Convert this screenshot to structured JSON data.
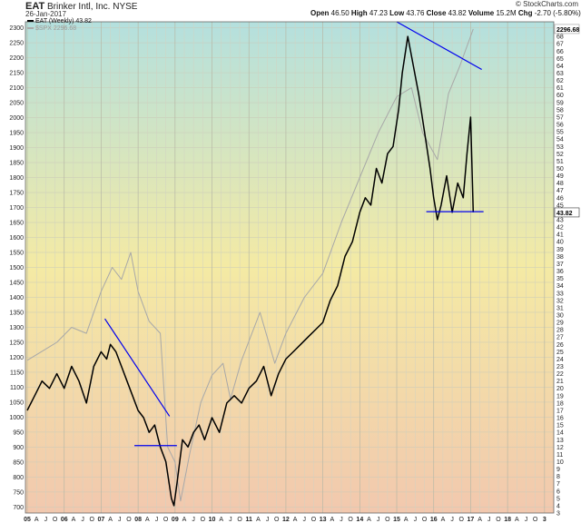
{
  "header": {
    "symbol": "EAT",
    "company": "Brinker Intl, Inc.",
    "exchange": "NYSE",
    "date": "26-Jan-2017",
    "brand": "© StockCharts.com",
    "quote": [
      {
        "k": "Open",
        "v": "46.50"
      },
      {
        "k": "High",
        "v": "47.23"
      },
      {
        "k": "Low",
        "v": "43.76"
      },
      {
        "k": "Close",
        "v": "43.82"
      },
      {
        "k": "Volume",
        "v": "15.2M"
      },
      {
        "k": "Chg",
        "v": "-2.70 (-5.80%)"
      }
    ]
  },
  "legend": {
    "eat": "EAT (Weekly) 43.82",
    "spx": "$SPX 2296.68"
  },
  "colors": {
    "eat_line": "#000000",
    "spx_line": "#a8a8a8",
    "trendline": "#0000ee",
    "bg_top": "#b4e0de",
    "bg_mid": "#f4eaa4",
    "bg_bottom": "#f2c8ae"
  },
  "chart_data": {
    "type": "line",
    "x_tick_labels": [
      "05",
      "A",
      "J",
      "O",
      "06",
      "A",
      "J",
      "O",
      "07",
      "A",
      "J",
      "O",
      "08",
      "A",
      "J",
      "O",
      "09",
      "A",
      "J",
      "O",
      "10",
      "A",
      "J",
      "O",
      "11",
      "A",
      "J",
      "O",
      "12",
      "A",
      "J",
      "O",
      "13",
      "A",
      "J",
      "O",
      "14",
      "A",
      "J",
      "O",
      "15",
      "A",
      "J",
      "O",
      "16",
      "A",
      "J",
      "O",
      "17",
      "A",
      "J",
      "O",
      "18",
      "A",
      "J",
      "O",
      "3"
    ],
    "x_range": [
      2004.95,
      2019.25
    ],
    "left_axis": {
      "ylim": [
        680,
        2320
      ],
      "ticks": [
        700,
        750,
        800,
        850,
        900,
        950,
        1000,
        1050,
        1100,
        1150,
        1200,
        1250,
        1300,
        1350,
        1400,
        1450,
        1500,
        1550,
        1600,
        1650,
        1700,
        1750,
        1800,
        1850,
        1900,
        1950,
        2000,
        2050,
        2100,
        2150,
        2200,
        2250,
        2300
      ]
    },
    "right_axis": {
      "ylim": [
        3,
        70
      ],
      "ticks": [
        3,
        4,
        5,
        6,
        7,
        8,
        9,
        10,
        11,
        12,
        13,
        14,
        15,
        16,
        17,
        18,
        19,
        20,
        21,
        22,
        23,
        24,
        25,
        26,
        27,
        28,
        29,
        30,
        31,
        32,
        33,
        34,
        35,
        36,
        37,
        38,
        39,
        40,
        41,
        42,
        43,
        44,
        45,
        46,
        47,
        48,
        49,
        50,
        51,
        52,
        53,
        54,
        55,
        56,
        57,
        58,
        59,
        60,
        61,
        62,
        63,
        64,
        65,
        66,
        67,
        68,
        69
      ]
    },
    "last_labels": {
      "spx": "2296.68",
      "eat": "43.82"
    },
    "series": [
      {
        "name": "EAT (Weekly) 43.82",
        "axis": "right",
        "x": [
          2005.0,
          2005.2,
          2005.4,
          2005.6,
          2005.8,
          2006.0,
          2006.2,
          2006.4,
          2006.6,
          2006.8,
          2007.0,
          2007.15,
          2007.25,
          2007.4,
          2007.55,
          2007.7,
          2007.85,
          2008.0,
          2008.15,
          2008.3,
          2008.45,
          2008.6,
          2008.75,
          2008.9,
          2008.97,
          2009.05,
          2009.2,
          2009.35,
          2009.5,
          2009.65,
          2009.8,
          2010.0,
          2010.2,
          2010.4,
          2010.6,
          2010.8,
          2011.0,
          2011.2,
          2011.4,
          2011.6,
          2011.8,
          2012.0,
          2012.2,
          2012.4,
          2012.6,
          2012.8,
          2013.0,
          2013.2,
          2013.4,
          2013.6,
          2013.8,
          2014.0,
          2014.15,
          2014.3,
          2014.45,
          2014.6,
          2014.75,
          2014.9,
          2015.05,
          2015.15,
          2015.3,
          2015.45,
          2015.6,
          2015.75,
          2015.9,
          2016.0,
          2016.1,
          2016.2,
          2016.35,
          2016.5,
          2016.65,
          2016.8,
          2016.9,
          2017.0,
          2017.07
        ],
        "values": [
          17,
          19,
          21,
          20,
          22,
          20,
          23,
          21,
          18,
          23,
          25,
          24,
          26,
          25,
          23,
          21,
          19,
          17,
          16,
          14,
          15,
          12,
          10,
          5,
          4,
          7,
          13,
          12,
          14,
          15,
          13,
          16,
          14,
          18,
          19,
          18,
          20,
          21,
          23,
          19,
          22,
          24,
          25,
          26,
          27,
          28,
          29,
          32,
          34,
          38,
          40,
          44,
          46,
          45,
          50,
          48,
          52,
          53,
          58,
          63,
          68,
          64,
          60,
          55,
          50,
          46,
          43,
          45,
          49,
          44,
          48,
          46,
          52,
          57,
          44
        ]
      },
      {
        "name": "$SPX 2296.68",
        "axis": "left",
        "x": [
          2005.0,
          2005.4,
          2005.8,
          2006.2,
          2006.6,
          2007.0,
          2007.3,
          2007.55,
          2007.8,
          2008.0,
          2008.3,
          2008.6,
          2008.8,
          2009.0,
          2009.15,
          2009.4,
          2009.7,
          2010.0,
          2010.3,
          2010.5,
          2010.8,
          2011.3,
          2011.7,
          2012.0,
          2012.5,
          2013.0,
          2013.5,
          2014.0,
          2014.5,
          2015.0,
          2015.4,
          2015.7,
          2016.1,
          2016.4,
          2016.7,
          2017.07
        ],
        "values": [
          1190,
          1220,
          1250,
          1300,
          1280,
          1420,
          1500,
          1460,
          1550,
          1420,
          1320,
          1280,
          900,
          850,
          720,
          880,
          1050,
          1140,
          1180,
          1060,
          1190,
          1350,
          1180,
          1280,
          1400,
          1480,
          1650,
          1800,
          1950,
          2070,
          2100,
          1950,
          1860,
          2080,
          2170,
          2296
        ]
      }
    ],
    "trendlines": [
      {
        "axis": "right",
        "from": [
          2007.1,
          29.5
        ],
        "to": [
          2008.85,
          16.2
        ]
      },
      {
        "axis": "right",
        "from": [
          2007.9,
          12.2
        ],
        "to": [
          2009.05,
          12.2
        ]
      },
      {
        "axis": "right",
        "from": [
          2015.0,
          70.0
        ],
        "to": [
          2017.3,
          63.5
        ]
      },
      {
        "axis": "right",
        "from": [
          2015.8,
          44.1
        ],
        "to": [
          2017.35,
          44.1
        ]
      }
    ]
  }
}
